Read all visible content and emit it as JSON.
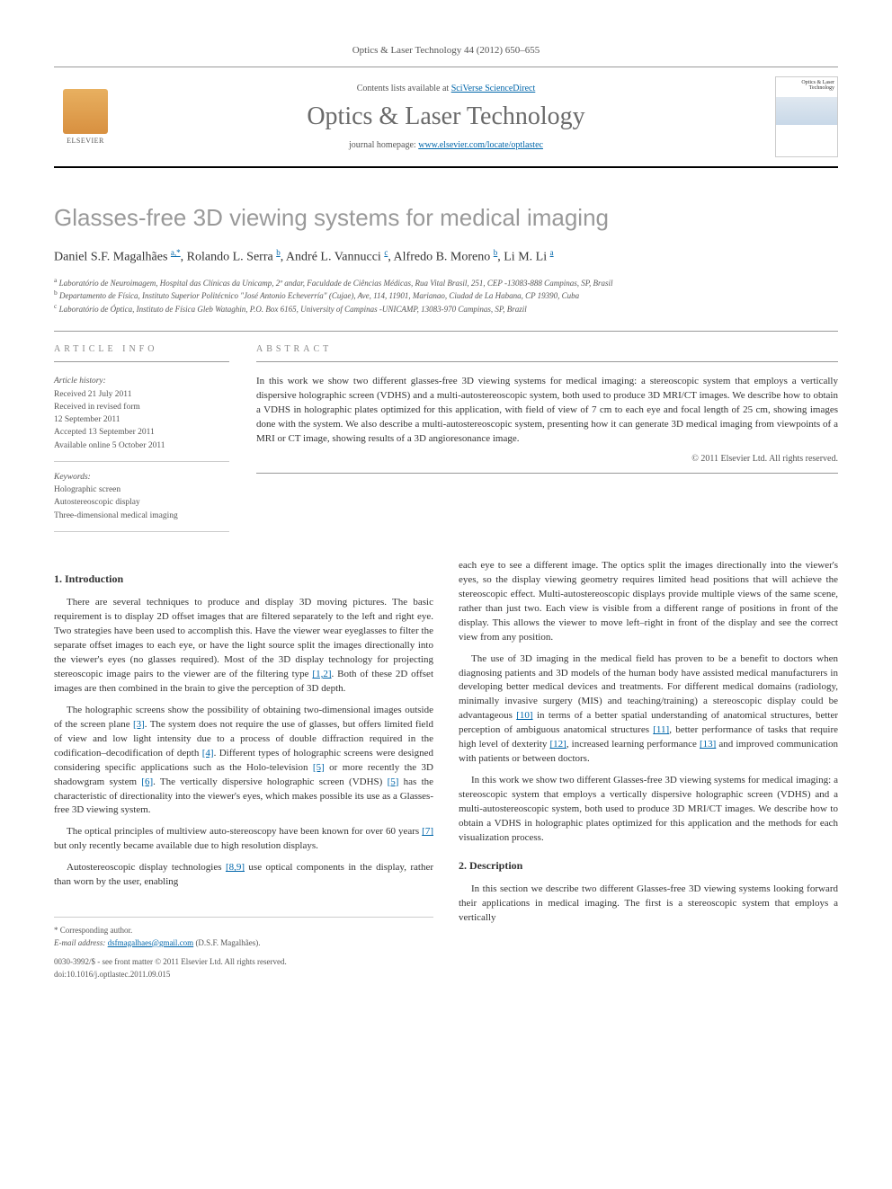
{
  "journal_ref": "Optics & Laser Technology 44 (2012) 650–655",
  "header": {
    "publisher": "ELSEVIER",
    "contents_text": "Contents lists available at ",
    "contents_link": "SciVerse ScienceDirect",
    "journal_title": "Optics & Laser Technology",
    "homepage_label": "journal homepage: ",
    "homepage_url": "www.elsevier.com/locate/optlastec",
    "cover_line1": "Optics & Laser",
    "cover_line2": "Technology"
  },
  "title": "Glasses-free 3D viewing systems for medical imaging",
  "authors_html": "Daniel S.F. Magalhães",
  "author_list": [
    {
      "name": "Daniel S.F. Magalhães",
      "sup": "a,*"
    },
    {
      "name": "Rolando L. Serra",
      "sup": "b"
    },
    {
      "name": "André L. Vannucci",
      "sup": "c"
    },
    {
      "name": "Alfredo B. Moreno",
      "sup": "b"
    },
    {
      "name": "Li M. Li",
      "sup": "a"
    }
  ],
  "affiliations": [
    {
      "sup": "a",
      "text": "Laboratório de Neuroimagem, Hospital das Clínicas da Unicamp, 2º andar, Faculdade de Ciências Médicas, Rua Vital Brasil, 251, CEP -13083-888 Campinas, SP, Brasil"
    },
    {
      "sup": "b",
      "text": "Departamento de Física, Instituto Superior Politécnico \"José Antonio Echeverría\" (Cujae), Ave, 114, 11901, Marianao, Ciudad de La Habana, CP 19390, Cuba"
    },
    {
      "sup": "c",
      "text": "Laboratório de Óptica, Instituto de Física Gleb Wataghin, P.O. Box 6165, University of Campinas -UNICAMP, 13083-970 Campinas, SP, Brazil"
    }
  ],
  "article_info": {
    "label": "ARTICLE INFO",
    "history_label": "Article history:",
    "history": [
      "Received 21 July 2011",
      "Received in revised form",
      "12 September 2011",
      "Accepted 13 September 2011",
      "Available online 5 October 2011"
    ],
    "keywords_label": "Keywords:",
    "keywords": [
      "Holographic screen",
      "Autostereoscopic display",
      "Three-dimensional medical imaging"
    ]
  },
  "abstract": {
    "label": "ABSTRACT",
    "text": "In this work we show two different glasses-free 3D viewing systems for medical imaging: a stereoscopic system that employs a vertically dispersive holographic screen (VDHS) and a multi-autostereoscopic system, both used to produce 3D MRI/CT images. We describe how to obtain a VDHS in holographic plates optimized for this application, with field of view of 7 cm to each eye and focal length of 25 cm, showing images done with the system. We also describe a multi-autostereoscopic system, presenting how it can generate 3D medical imaging from viewpoints of a MRI or CT image, showing results of a 3D angioresonance image.",
    "copyright": "© 2011 Elsevier Ltd. All rights reserved."
  },
  "body": {
    "col1": {
      "heading1": "1. Introduction",
      "p1": "There are several techniques to produce and display 3D moving pictures. The basic requirement is to display 2D offset images that are filtered separately to the left and right eye. Two strategies have been used to accomplish this. Have the viewer wear eyeglasses to filter the separate offset images to each eye, or have the light source split the images directionally into the viewer's eyes (no glasses required). Most of the 3D display technology for projecting stereoscopic image pairs to the viewer are of the filtering type [1,2]. Both of these 2D offset images are then combined in the brain to give the perception of 3D depth.",
      "p2": "The holographic screens show the possibility of obtaining two-dimensional images outside of the screen plane [3]. The system does not require the use of glasses, but offers limited field of view and low light intensity due to a process of double diffraction required in the codification–decodification of depth [4]. Different types of holographic screens were designed considering specific applications such as the Holo-television [5] or more recently the 3D shadowgram system [6]. The vertically dispersive holographic screen (VDHS) [5] has the characteristic of directionality into the viewer's eyes, which makes possible its use as a Glasses-free 3D viewing system.",
      "p3": "The optical principles of multiview auto-stereoscopy have been known for over 60 years [7] but only recently became available due to high resolution displays.",
      "p4": "Autostereoscopic display technologies [8,9] use optical components in the display, rather than worn by the user, enabling"
    },
    "col2": {
      "p1": "each eye to see a different image. The optics split the images directionally into the viewer's eyes, so the display viewing geometry requires limited head positions that will achieve the stereoscopic effect. Multi-autostereoscopic displays provide multiple views of the same scene, rather than just two. Each view is visible from a different range of positions in front of the display. This allows the viewer to move left–right in front of the display and see the correct view from any position.",
      "p2": "The use of 3D imaging in the medical field has proven to be a benefit to doctors when diagnosing patients and 3D models of the human body have assisted medical manufacturers in developing better medical devices and treatments. For different medical domains (radiology, minimally invasive surgery (MIS) and teaching/training) a stereoscopic display could be advantageous [10] in terms of a better spatial understanding of anatomical structures, better perception of ambiguous anatomical structures [11], better performance of tasks that require high level of dexterity [12], increased learning performance [13] and improved communication with patients or between doctors.",
      "p3": "In this work we show two different Glasses-free 3D viewing systems for medical imaging: a stereoscopic system that employs a vertically dispersive holographic screen (VDHS) and a multi-autostereoscopic system, both used to produce 3D MRI/CT images. We describe how to obtain a VDHS in holographic plates optimized for this application and the methods for each visualization process.",
      "heading2": "2. Description",
      "p4": "In this section we describe two different Glasses-free 3D viewing systems looking forward their applications in medical imaging. The first is a stereoscopic system that employs a vertically"
    }
  },
  "footer": {
    "corr_label": "* Corresponding author.",
    "email_label": "E-mail address: ",
    "email": "dsfmagalhaes@gmail.com",
    "email_name": " (D.S.F. Magalhães).",
    "issn": "0030-3992/$ - see front matter © 2011 Elsevier Ltd. All rights reserved.",
    "doi": "doi:10.1016/j.optlastec.2011.09.015"
  },
  "refs": {
    "r12": "[1,2]",
    "r3": "[3]",
    "r4": "[4]",
    "r5": "[5]",
    "r6": "[6]",
    "r7": "[7]",
    "r89": "[8,9]",
    "r10": "[10]",
    "r11": "[11]",
    "r12b": "[12]",
    "r13": "[13]"
  }
}
